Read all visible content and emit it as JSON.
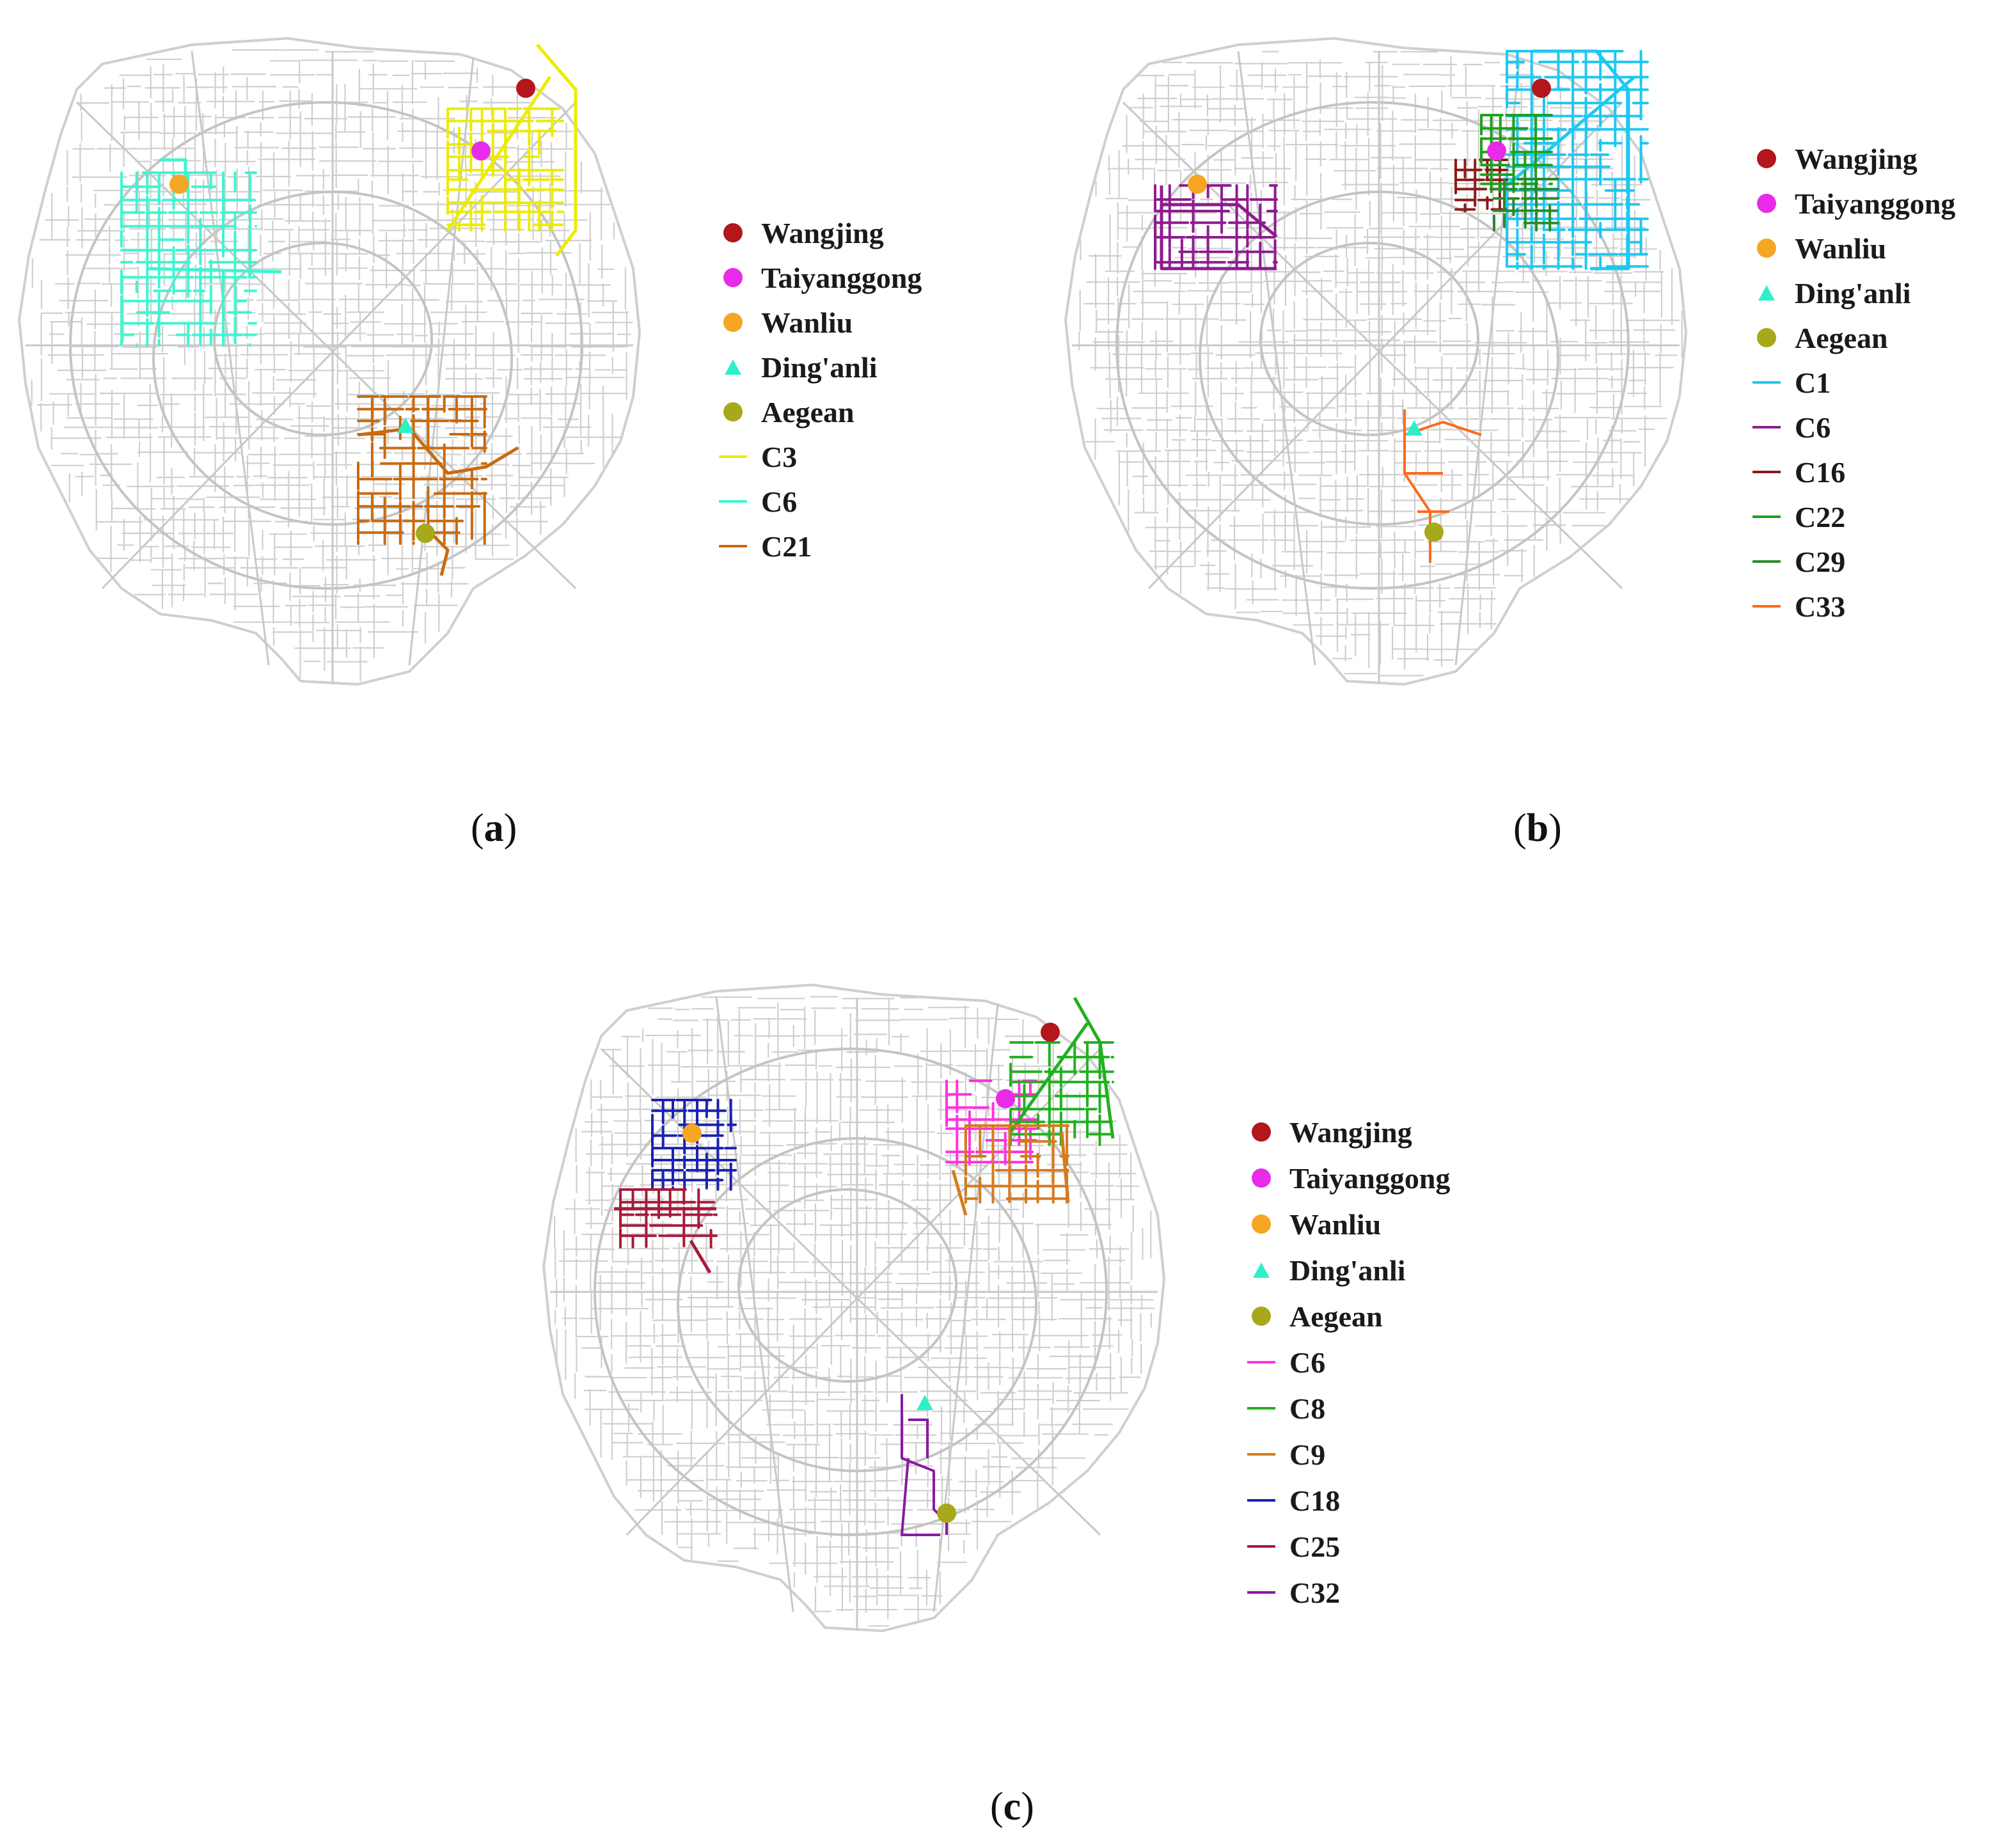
{
  "panels": [
    {
      "caption_letter": "a",
      "legend": [
        {
          "kind": "dot",
          "label": "Wangjing",
          "color": "#b3161b"
        },
        {
          "kind": "dot",
          "label": "Taiyanggong",
          "color": "#e82be8"
        },
        {
          "kind": "dot",
          "label": "Wanliu",
          "color": "#f5a623"
        },
        {
          "kind": "triangle",
          "label": "Ding'anli",
          "color": "#2ef0c8"
        },
        {
          "kind": "dot",
          "label": "Aegean",
          "color": "#a8a81c"
        },
        {
          "kind": "line",
          "label": "C3",
          "color": "#ecec00"
        },
        {
          "kind": "line",
          "label": "C6",
          "color": "#3ff5d2"
        },
        {
          "kind": "line",
          "label": "C21",
          "color": "#c86a10"
        }
      ]
    },
    {
      "caption_letter": "b",
      "legend": [
        {
          "kind": "dot",
          "label": "Wangjing",
          "color": "#b3161b"
        },
        {
          "kind": "dot",
          "label": "Taiyanggong",
          "color": "#e82be8"
        },
        {
          "kind": "dot",
          "label": "Wanliu",
          "color": "#f5a623"
        },
        {
          "kind": "triangle",
          "label": "Ding'anli",
          "color": "#2ef0c8"
        },
        {
          "kind": "dot",
          "label": "Aegean",
          "color": "#a8a81c"
        },
        {
          "kind": "line",
          "label": "C1",
          "color": "#1ec8f0"
        },
        {
          "kind": "line",
          "label": "C6",
          "color": "#8e1c8e"
        },
        {
          "kind": "line",
          "label": "C16",
          "color": "#8b1a1a"
        },
        {
          "kind": "line",
          "label": "C22",
          "color": "#1ea01e"
        },
        {
          "kind": "line",
          "label": "C29",
          "color": "#2a8a2a"
        },
        {
          "kind": "line",
          "label": "C33",
          "color": "#ff6a1a"
        }
      ]
    },
    {
      "caption_letter": "c",
      "legend": [
        {
          "kind": "dot",
          "label": "Wangjing",
          "color": "#b3161b"
        },
        {
          "kind": "dot",
          "label": "Taiyanggong",
          "color": "#e82be8"
        },
        {
          "kind": "dot",
          "label": "Wanliu",
          "color": "#f5a623"
        },
        {
          "kind": "triangle",
          "label": "Ding'anli",
          "color": "#2ef0c8"
        },
        {
          "kind": "dot",
          "label": "Aegean",
          "color": "#a8a81c"
        },
        {
          "kind": "line",
          "label": "C6",
          "color": "#ff33dd"
        },
        {
          "kind": "line",
          "label": "C8",
          "color": "#22b022"
        },
        {
          "kind": "line",
          "label": "C9",
          "color": "#d67a1e"
        },
        {
          "kind": "line",
          "label": "C18",
          "color": "#1a22b0"
        },
        {
          "kind": "line",
          "label": "C25",
          "color": "#a81a3a"
        },
        {
          "kind": "line",
          "label": "C32",
          "color": "#8a1aa0"
        }
      ]
    }
  ],
  "road_color": "#cfcfcf"
}
